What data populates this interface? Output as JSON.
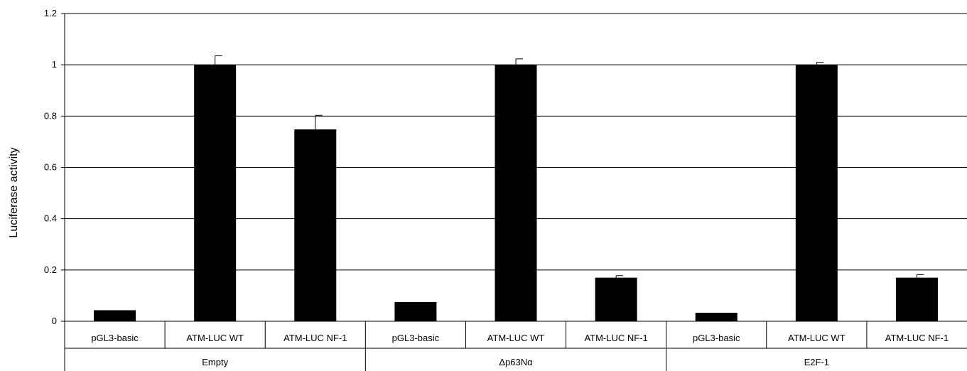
{
  "chart_data": {
    "type": "bar",
    "ylabel": "Luciferase activity",
    "ylim": [
      0,
      1.2
    ],
    "yticks": [
      "0",
      "0.2",
      "0.4",
      "0.6",
      "0.8",
      "1",
      "1.2"
    ],
    "grid": true,
    "groups": [
      {
        "label": "Empty",
        "categories": [
          "pGL3-basic",
          "ATM-LUC WT",
          "ATM-LUC NF-1"
        ],
        "values": [
          0.043,
          1.0,
          0.748
        ],
        "errors": [
          0,
          0.035,
          0.055
        ]
      },
      {
        "label": "Δp63Nα",
        "categories": [
          "pGL3-basic",
          "ATM-LUC WT",
          "ATM-LUC NF-1"
        ],
        "values": [
          0.075,
          1.0,
          0.17
        ],
        "errors": [
          0,
          0.023,
          0.008
        ]
      },
      {
        "label": "E2F-1",
        "categories": [
          "pGL3-basic",
          "ATM-LUC WT",
          "ATM-LUC NF-1"
        ],
        "values": [
          0.033,
          1.0,
          0.17
        ],
        "errors": [
          0,
          0.01,
          0.012
        ]
      }
    ],
    "bar_color": "#000000",
    "grid_color": "#000000"
  }
}
